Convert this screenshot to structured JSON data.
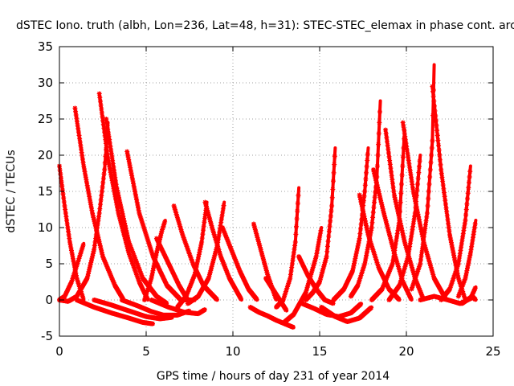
{
  "chart_data": {
    "type": "scatter",
    "title": "dSTEC Iono. truth (albh, Lon=236, Lat=48, h=31): STEC-STEC_elemax in phase cont. arc",
    "xlabel": "GPS time / hours of day 231 of year 2014",
    "ylabel": "dSTEC  / TECUs",
    "xlim": [
      0,
      25
    ],
    "ylim": [
      -5,
      35
    ],
    "xticks": [
      0,
      5,
      10,
      15,
      20,
      25
    ],
    "yticks": [
      -5,
      0,
      5,
      10,
      15,
      20,
      25,
      30,
      35
    ],
    "grid": true,
    "legend": "none",
    "marker": "plus-cross",
    "color": "#ff0000",
    "series": [
      {
        "x": [
          0.0,
          0.3,
          0.6,
          1.0,
          1.4
        ],
        "y": [
          18.5,
          13.0,
          8.0,
          3.0,
          0.0
        ]
      },
      {
        "x": [
          0.0,
          0.3,
          0.7,
          1.1,
          1.4
        ],
        "y": [
          0.0,
          0.5,
          2.5,
          5.5,
          7.8
        ]
      },
      {
        "x": [
          0.0,
          0.5,
          1.0,
          1.6,
          2.0,
          2.3,
          2.6,
          2.8
        ],
        "y": [
          0.0,
          -0.2,
          0.5,
          3.0,
          7.0,
          12.0,
          18.0,
          24.5
        ]
      },
      {
        "x": [
          0.9,
          1.4,
          1.9,
          2.5,
          3.2,
          3.7
        ],
        "y": [
          26.5,
          18.5,
          12.0,
          6.0,
          2.0,
          0.0
        ]
      },
      {
        "x": [
          2.3,
          2.8,
          3.4,
          4.0,
          4.6,
          5.1
        ],
        "y": [
          28.5,
          19.5,
          12.0,
          6.5,
          2.5,
          0.0
        ]
      },
      {
        "x": [
          2.7,
          3.3,
          4.0,
          4.8,
          5.6,
          6.2
        ],
        "y": [
          25.0,
          15.5,
          8.0,
          3.0,
          0.5,
          -0.5
        ]
      },
      {
        "x": [
          3.9,
          4.6,
          5.4,
          6.2,
          7.0,
          7.8
        ],
        "y": [
          20.5,
          12.0,
          6.0,
          2.0,
          0.0,
          0.0
        ]
      },
      {
        "x": [
          1.0,
          2.0,
          3.0,
          4.0,
          4.8,
          5.4
        ],
        "y": [
          0.0,
          -1.0,
          -1.8,
          -2.5,
          -3.1,
          -3.3
        ]
      },
      {
        "x": [
          2.0,
          3.0,
          4.0,
          5.0,
          5.8,
          6.5
        ],
        "y": [
          0.0,
          -0.7,
          -1.5,
          -2.3,
          -2.6,
          -2.4
        ]
      },
      {
        "x": [
          3.6,
          4.5,
          5.3,
          6.0,
          6.8,
          7.5
        ],
        "y": [
          0.0,
          -0.8,
          -1.6,
          -2.1,
          -2.1,
          -1.5
        ]
      },
      {
        "x": [
          5.3,
          6.3,
          7.2,
          8.0,
          8.4
        ],
        "y": [
          0.0,
          -1.0,
          -1.7,
          -1.9,
          -1.3
        ]
      },
      {
        "x": [
          4.9,
          5.3,
          5.6,
          5.9,
          6.1
        ],
        "y": [
          0.0,
          3.0,
          6.5,
          9.5,
          11.0
        ]
      },
      {
        "x": [
          5.6,
          6.3,
          6.9,
          7.4
        ],
        "y": [
          8.5,
          5.0,
          2.0,
          0.0
        ]
      },
      {
        "x": [
          6.6,
          7.1,
          7.7,
          8.3,
          9.1
        ],
        "y": [
          13.0,
          9.0,
          5.0,
          2.0,
          0.0
        ]
      },
      {
        "x": [
          6.8,
          7.3,
          7.8,
          8.2,
          8.5
        ],
        "y": [
          -1.0,
          0.5,
          3.5,
          8.0,
          13.5
        ]
      },
      {
        "x": [
          8.4,
          8.8,
          9.3,
          9.8,
          10.5
        ],
        "y": [
          13.5,
          10.0,
          6.0,
          3.0,
          0.0
        ]
      },
      {
        "x": [
          7.4,
          8.0,
          8.6,
          9.1,
          9.5
        ],
        "y": [
          -0.5,
          0.5,
          3.0,
          7.5,
          13.5
        ]
      },
      {
        "x": [
          9.4,
          9.9,
          10.4,
          10.9,
          11.4
        ],
        "y": [
          10.0,
          7.0,
          4.0,
          1.5,
          0.0
        ]
      },
      {
        "x": [
          11.2,
          11.6,
          12.0,
          12.5
        ],
        "y": [
          10.5,
          7.0,
          3.5,
          0.0
        ]
      },
      {
        "x": [
          11.0,
          11.5,
          12.0,
          12.5,
          13.0,
          13.5
        ],
        "y": [
          -1.0,
          -1.7,
          -2.2,
          -2.8,
          -3.3,
          -3.8
        ]
      },
      {
        "x": [
          11.9,
          12.3,
          12.7,
          13.1
        ],
        "y": [
          3.0,
          1.5,
          0.0,
          -1.5
        ]
      },
      {
        "x": [
          12.5,
          12.9,
          13.3,
          13.6,
          13.8
        ],
        "y": [
          -1.0,
          0.0,
          3.0,
          8.0,
          15.5
        ]
      },
      {
        "x": [
          13.8,
          14.3,
          14.8,
          15.3,
          15.8
        ],
        "y": [
          6.0,
          3.5,
          1.5,
          0.0,
          -0.5
        ]
      },
      {
        "x": [
          13.0,
          13.5,
          14.2,
          14.8,
          15.1
        ],
        "y": [
          -3.0,
          -2.0,
          1.0,
          6.0,
          10.0
        ]
      },
      {
        "x": [
          14.2,
          14.6,
          15.0,
          15.4,
          15.7,
          15.9
        ],
        "y": [
          0.0,
          1.0,
          2.5,
          6.0,
          13.0,
          21.0
        ]
      },
      {
        "x": [
          14.0,
          14.7,
          15.4,
          16.1,
          16.8,
          17.4
        ],
        "y": [
          -0.5,
          -1.2,
          -2.0,
          -2.3,
          -1.8,
          -0.5
        ]
      },
      {
        "x": [
          15.1,
          15.9,
          16.6,
          17.3,
          18.0
        ],
        "y": [
          -1.0,
          -2.3,
          -3.0,
          -2.5,
          -1.0
        ]
      },
      {
        "x": [
          15.8,
          16.4,
          16.9,
          17.3,
          17.6,
          17.8
        ],
        "y": [
          0.0,
          1.5,
          4.0,
          8.5,
          15.0,
          21.0
        ]
      },
      {
        "x": [
          16.8,
          17.2,
          17.6,
          18.0,
          18.3,
          18.5
        ],
        "y": [
          0.5,
          2.0,
          5.0,
          10.0,
          17.0,
          27.5
        ]
      },
      {
        "x": [
          17.3,
          17.8,
          18.4,
          19.0,
          19.6
        ],
        "y": [
          14.5,
          9.0,
          4.5,
          1.5,
          0.0
        ]
      },
      {
        "x": [
          18.1,
          18.7,
          19.3,
          19.8,
          20.3
        ],
        "y": [
          18.0,
          12.0,
          6.5,
          2.5,
          0.0
        ]
      },
      {
        "x": [
          18.8,
          19.3,
          19.9,
          20.5,
          21.0
        ],
        "y": [
          23.5,
          14.5,
          8.0,
          3.0,
          0.0
        ]
      },
      {
        "x": [
          18.0,
          18.6,
          19.2,
          19.6,
          19.9
        ],
        "y": [
          0.0,
          1.5,
          5.0,
          11.0,
          23.5
        ]
      },
      {
        "x": [
          19.0,
          19.6,
          20.1,
          20.5,
          20.8
        ],
        "y": [
          0.0,
          2.0,
          6.0,
          12.0,
          20.0
        ]
      },
      {
        "x": [
          19.8,
          20.4,
          21.0,
          21.6,
          22.3
        ],
        "y": [
          24.5,
          15.0,
          8.0,
          3.0,
          0.0
        ]
      },
      {
        "x": [
          20.3,
          20.8,
          21.2,
          21.5,
          21.6
        ],
        "y": [
          1.5,
          5.0,
          12.0,
          22.0,
          32.5
        ]
      },
      {
        "x": [
          21.5,
          22.0,
          22.5,
          23.0,
          23.4
        ],
        "y": [
          29.5,
          18.0,
          9.0,
          3.0,
          0.0
        ]
      },
      {
        "x": [
          20.8,
          21.6,
          22.4,
          23.1,
          23.7,
          24.0
        ],
        "y": [
          0.0,
          0.5,
          0.0,
          -0.5,
          0.2,
          1.8
        ]
      },
      {
        "x": [
          22.0,
          22.5,
          23.0,
          23.4,
          23.7
        ],
        "y": [
          0.0,
          1.5,
          5.0,
          11.0,
          18.5
        ]
      },
      {
        "x": [
          23.0,
          23.4,
          23.7,
          23.9,
          24.0
        ],
        "y": [
          0.5,
          3.0,
          6.5,
          9.5,
          11.0
        ]
      },
      {
        "x": [
          23.2,
          23.5,
          23.8,
          24.0
        ],
        "y": [
          -0.5,
          0.0,
          0.5,
          0.0
        ]
      }
    ]
  }
}
